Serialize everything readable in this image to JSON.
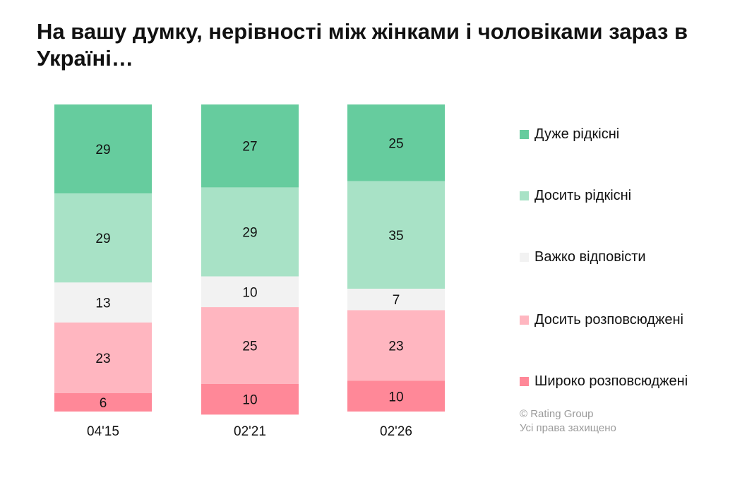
{
  "title": "На вашу думку, нерівності між жінками і чоловіками зараз в Україні…",
  "credit": {
    "line1": "© Rating Group",
    "line2": "Усі права захищено"
  },
  "chart_data": {
    "type": "bar",
    "stacked": true,
    "title": "На вашу думку, нерівності між жінками і чоловіками зараз в Україні…",
    "xlabel": "",
    "ylabel": "",
    "ylim": [
      0,
      100
    ],
    "legend_position": "right",
    "categories": [
      "04'15",
      "02'21",
      "02'26"
    ],
    "series": [
      {
        "name": "Дуже рідкісні",
        "color": "#66cc9e",
        "values": [
          29,
          27,
          25
        ]
      },
      {
        "name": "Досить рідкісні",
        "color": "#a8e2c6",
        "values": [
          29,
          29,
          35
        ]
      },
      {
        "name": "Важко відповісти",
        "color": "#f2f2f2",
        "values": [
          13,
          10,
          7
        ]
      },
      {
        "name": "Досить розповсюджені",
        "color": "#ffb6c0",
        "values": [
          23,
          25,
          23
        ]
      },
      {
        "name": "Широко розповсюджені",
        "color": "#ff8898",
        "values": [
          6,
          10,
          10
        ]
      }
    ]
  }
}
